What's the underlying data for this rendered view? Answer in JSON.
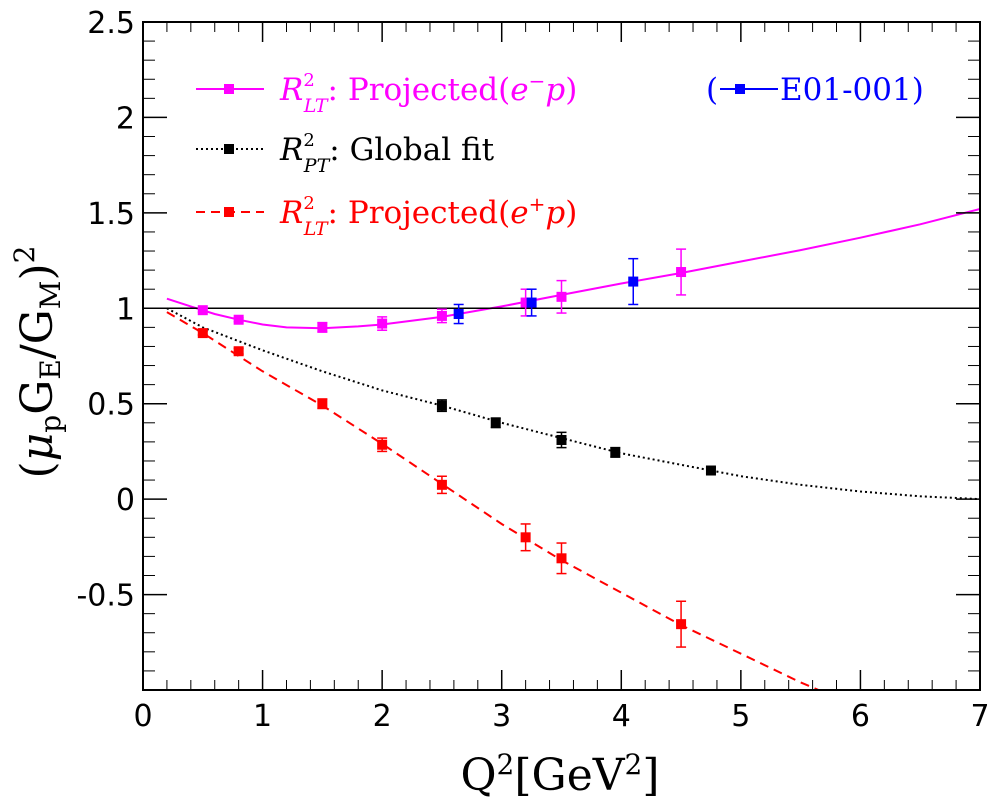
{
  "chart_data": {
    "type": "scatter",
    "x_axis": {
      "label": "Q²[GeV²]",
      "range": [
        0,
        7
      ],
      "ticks": [
        0,
        1,
        2,
        3,
        4,
        5,
        6,
        7
      ],
      "tick_labels": [
        "0",
        "1",
        "2",
        "3",
        "4",
        "5",
        "6",
        "7"
      ]
    },
    "y_axis": {
      "label": "(μpGE/GM)²",
      "range": [
        -1.0,
        2.5
      ],
      "ticks": [
        -0.5,
        0,
        0.5,
        1,
        1.5,
        2,
        2.5
      ],
      "tick_labels": [
        "-0.5",
        "0",
        "0.5",
        "1",
        "1.5",
        "2",
        "2.5"
      ]
    },
    "grid": false,
    "legend_position": "top",
    "reference_line": {
      "y": 1
    },
    "series": [
      {
        "name": "R²LT: Projected(e⁻p)",
        "legend_label": "R²LT: Projected(e⁻p)",
        "color": "#ff00ff",
        "line_style": "solid",
        "points": [
          {
            "x": 0.5,
            "y": 0.99,
            "err": 0.01
          },
          {
            "x": 0.8,
            "y": 0.94,
            "err": 0.01
          },
          {
            "x": 1.5,
            "y": 0.9,
            "err": 0.025
          },
          {
            "x": 2.0,
            "y": 0.92,
            "err": 0.035
          },
          {
            "x": 2.5,
            "y": 0.96,
            "err": 0.035
          },
          {
            "x": 3.2,
            "y": 1.03,
            "err": 0.07
          },
          {
            "x": 3.5,
            "y": 1.06,
            "err": 0.085
          },
          {
            "x": 4.5,
            "y": 1.19,
            "err": 0.12
          }
        ],
        "curve": [
          [
            0.2,
            1.05
          ],
          [
            0.4,
            1.01
          ],
          [
            0.6,
            0.97
          ],
          [
            0.8,
            0.94
          ],
          [
            1.0,
            0.915
          ],
          [
            1.2,
            0.9
          ],
          [
            1.5,
            0.895
          ],
          [
            1.8,
            0.905
          ],
          [
            2.0,
            0.915
          ],
          [
            2.5,
            0.955
          ],
          [
            3.0,
            1.01
          ],
          [
            3.5,
            1.07
          ],
          [
            4.0,
            1.13
          ],
          [
            4.5,
            1.185
          ],
          [
            5.0,
            1.245
          ],
          [
            5.5,
            1.305
          ],
          [
            6.0,
            1.37
          ],
          [
            6.5,
            1.44
          ],
          [
            7.0,
            1.52
          ]
        ]
      },
      {
        "name": "R²PT: Global fit",
        "legend_label": "R²PT: Global fit",
        "color": "#000000",
        "line_style": "dotted",
        "points": [
          {
            "x": 2.5,
            "y": 0.49,
            "err": 0.03
          },
          {
            "x": 2.95,
            "y": 0.4,
            "err": 0.025
          },
          {
            "x": 3.5,
            "y": 0.31,
            "err": 0.04
          },
          {
            "x": 3.95,
            "y": 0.245,
            "err": 0.025
          },
          {
            "x": 4.75,
            "y": 0.15,
            "err": 0.015
          }
        ],
        "curve": [
          [
            0.2,
            1.0
          ],
          [
            0.5,
            0.9
          ],
          [
            1.0,
            0.78
          ],
          [
            1.5,
            0.67
          ],
          [
            2.0,
            0.57
          ],
          [
            2.5,
            0.49
          ],
          [
            3.0,
            0.4
          ],
          [
            3.5,
            0.32
          ],
          [
            4.0,
            0.24
          ],
          [
            4.5,
            0.18
          ],
          [
            5.0,
            0.12
          ],
          [
            5.5,
            0.075
          ],
          [
            6.0,
            0.04
          ],
          [
            6.5,
            0.015
          ],
          [
            7.0,
            0.0
          ]
        ]
      },
      {
        "name": "R²LT: Projected(e⁺p)",
        "legend_label": "R²LT: Projected(e⁺p)",
        "color": "#ff0000",
        "line_style": "dashed",
        "points": [
          {
            "x": 0.5,
            "y": 0.87,
            "err": 0.01
          },
          {
            "x": 0.8,
            "y": 0.775,
            "err": 0.015
          },
          {
            "x": 1.5,
            "y": 0.5,
            "err": 0.025
          },
          {
            "x": 2.0,
            "y": 0.285,
            "err": 0.035
          },
          {
            "x": 2.5,
            "y": 0.075,
            "err": 0.045
          },
          {
            "x": 3.2,
            "y": -0.2,
            "err": 0.07
          },
          {
            "x": 3.5,
            "y": -0.31,
            "err": 0.08
          },
          {
            "x": 4.5,
            "y": -0.655,
            "err": 0.12
          }
        ],
        "curve": [
          [
            0.2,
            0.98
          ],
          [
            0.5,
            0.87
          ],
          [
            1.0,
            0.67
          ],
          [
            1.5,
            0.49
          ],
          [
            2.0,
            0.29
          ],
          [
            2.5,
            0.08
          ],
          [
            3.0,
            -0.13
          ],
          [
            3.5,
            -0.32
          ],
          [
            4.0,
            -0.49
          ],
          [
            4.5,
            -0.66
          ],
          [
            5.0,
            -0.81
          ],
          [
            5.5,
            -0.96
          ],
          [
            5.65,
            -1.0
          ]
        ]
      },
      {
        "name": "E01-001",
        "legend_label": "E01-001",
        "color": "#0000ff",
        "line_style": "none",
        "points": [
          {
            "x": 2.64,
            "y": 0.97,
            "err": 0.05
          },
          {
            "x": 3.25,
            "y": 1.03,
            "err": 0.07
          },
          {
            "x": 4.1,
            "y": 1.14,
            "err": 0.12
          }
        ]
      }
    ]
  }
}
